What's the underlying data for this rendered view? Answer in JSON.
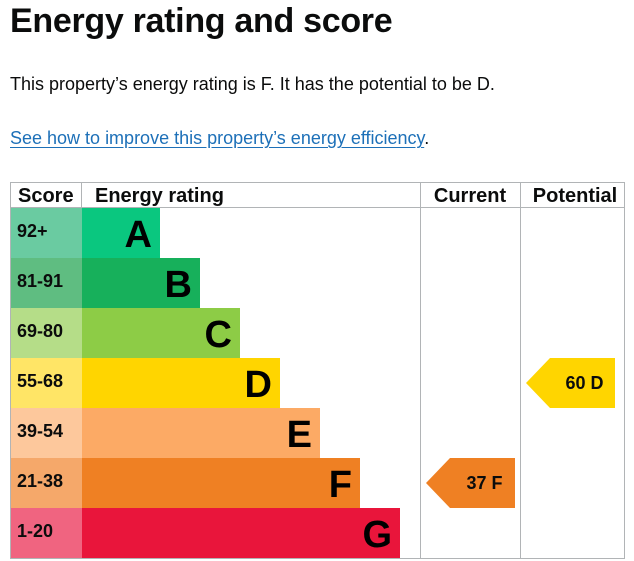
{
  "page": {
    "heading": "Energy rating and score",
    "summary": "This property’s energy rating is F. It has the potential to be D.",
    "improve_link": "See how to improve this property’s energy efficiency",
    "improve_suffix": "."
  },
  "table": {
    "headers": {
      "score": "Score",
      "rating": "Energy rating",
      "current": "Current",
      "potential": "Potential"
    },
    "bands": [
      {
        "score": "92+",
        "letter": "A",
        "bar_color": "#0ac77f",
        "score_color": "#6acba1"
      },
      {
        "score": "81-91",
        "letter": "B",
        "bar_color": "#17b05b",
        "score_color": "#5fbd81"
      },
      {
        "score": "69-80",
        "letter": "C",
        "bar_color": "#8dcc46",
        "score_color": "#b5dd88"
      },
      {
        "score": "55-68",
        "letter": "D",
        "bar_color": "#ffd500",
        "score_color": "#ffe566"
      },
      {
        "score": "39-54",
        "letter": "E",
        "bar_color": "#fcaa65",
        "score_color": "#fdc89c"
      },
      {
        "score": "21-38",
        "letter": "F",
        "bar_color": "#ef8023",
        "score_color": "#f5a86a"
      },
      {
        "score": "1-20",
        "letter": "G",
        "bar_color": "#e9153b",
        "score_color": "#f06480"
      }
    ],
    "current": {
      "score": 37,
      "letter": "F",
      "label": "37 F",
      "color": "#ef8023"
    },
    "potential": {
      "score": 60,
      "letter": "D",
      "label": "60 D",
      "color": "#ffd500"
    }
  }
}
